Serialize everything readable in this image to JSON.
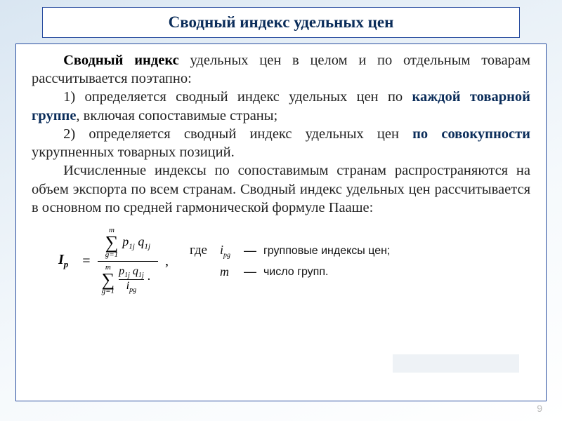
{
  "title": "Сводный индекс удельных цен",
  "intro": {
    "lead_bold": "Сводный индекс",
    "lead_rest": " удельных цен в целом и по отдельным товарам рассчитывается поэтапно:"
  },
  "item1": {
    "num": "1)",
    "pre": " определяется сводный индекс удельных цен по ",
    "bold": "каждой товарной группе",
    "post": ", включая сопоставимые страны;"
  },
  "item2": {
    "num": "2)",
    "pre": " определяется сводный индекс удельных цен ",
    "bold": "по совокупности",
    "post": " укрупненных товарных позиций."
  },
  "para3": "Исчисленные индексы по сопоставимым странам распространяются на объем экспорта по всем странам. Сводный индекс удельных цен рассчитывается в основном по средней гармонической формуле Пааше:",
  "formula": {
    "lhs": "I",
    "lhs_sub": "p",
    "eq": "=",
    "sum_lower": "g=1",
    "sum_upper": "m",
    "num_term_a": "p",
    "num_term_a_sub": "1j",
    "num_term_b": "q",
    "num_term_b_sub": "1j",
    "den_inner_num_a": "p",
    "den_inner_num_a_sub": "1j",
    "den_inner_num_b": "q",
    "den_inner_num_b_sub": "1j",
    "den_inner_den": "i",
    "den_inner_den_sub": "pg",
    "comma": ","
  },
  "legend": {
    "gde": "где",
    "row1_sym": "i",
    "row1_sym_sub": "pg",
    "row1_dash": "—",
    "row1_desc": "групповые индексы цен;",
    "row2_sym": "m",
    "row2_dash": "—",
    "row2_desc": "число групп."
  },
  "page_number": "9",
  "colors": {
    "border": "#2a4ea0",
    "title_text": "#0b2d5a",
    "body_text": "#222222",
    "page_num": "#b9b9b9"
  }
}
